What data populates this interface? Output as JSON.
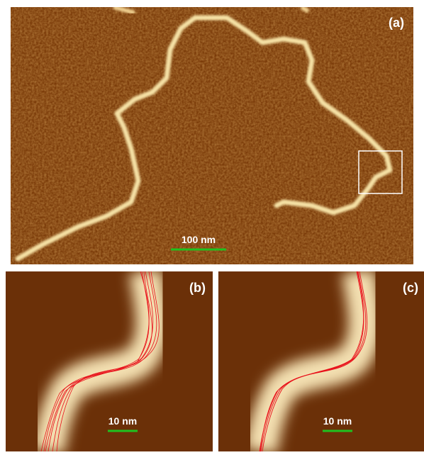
{
  "panels": [
    {
      "label": "(a)",
      "scale_bar": "100 nm"
    },
    {
      "label": "(b)",
      "scale_bar": "10 nm"
    },
    {
      "label": "(c)",
      "scale_bar": "10 nm"
    }
  ]
}
